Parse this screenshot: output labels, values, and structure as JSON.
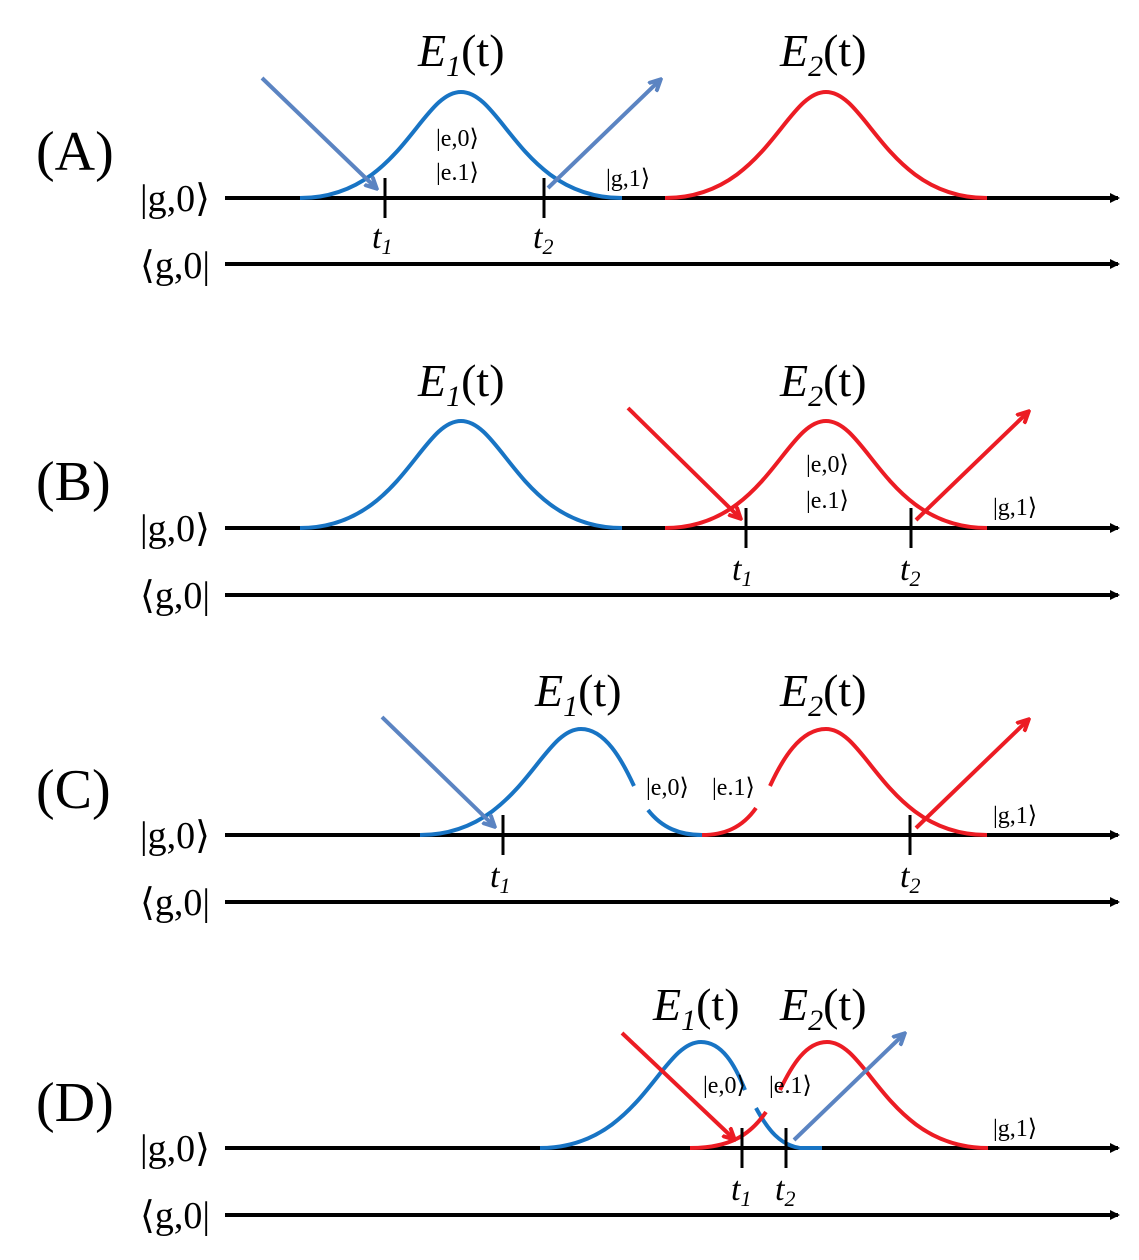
{
  "colors": {
    "blue": "#1874c4",
    "red": "#ec1c24",
    "arrow_blue": "#5b84c2",
    "axis": "#000000"
  },
  "ket_row": "|g,0⟩",
  "bra_row": "⟨g,0|",
  "field_1": {
    "letter": "E",
    "sub": "1",
    "arg": "(t)"
  },
  "field_2": {
    "letter": "E",
    "sub": "2",
    "arg": "(t)"
  },
  "t1": {
    "letter": "t",
    "sub": "1"
  },
  "t2": {
    "letter": "t",
    "sub": "2"
  },
  "panels": [
    {
      "label": "(A)",
      "states": [
        "|e,0⟩",
        "|e.1⟩",
        "|g,1⟩"
      ]
    },
    {
      "label": "(B)",
      "states": [
        "|e,0⟩",
        "|e.1⟩",
        "|g,1⟩"
      ]
    },
    {
      "label": "(C)",
      "states": [
        "|e,0⟩",
        "|e.1⟩",
        "|g,1⟩"
      ]
    },
    {
      "label": "(D)",
      "states": [
        "|e,0⟩",
        "|e.1⟩",
        "|g,1⟩"
      ]
    }
  ]
}
